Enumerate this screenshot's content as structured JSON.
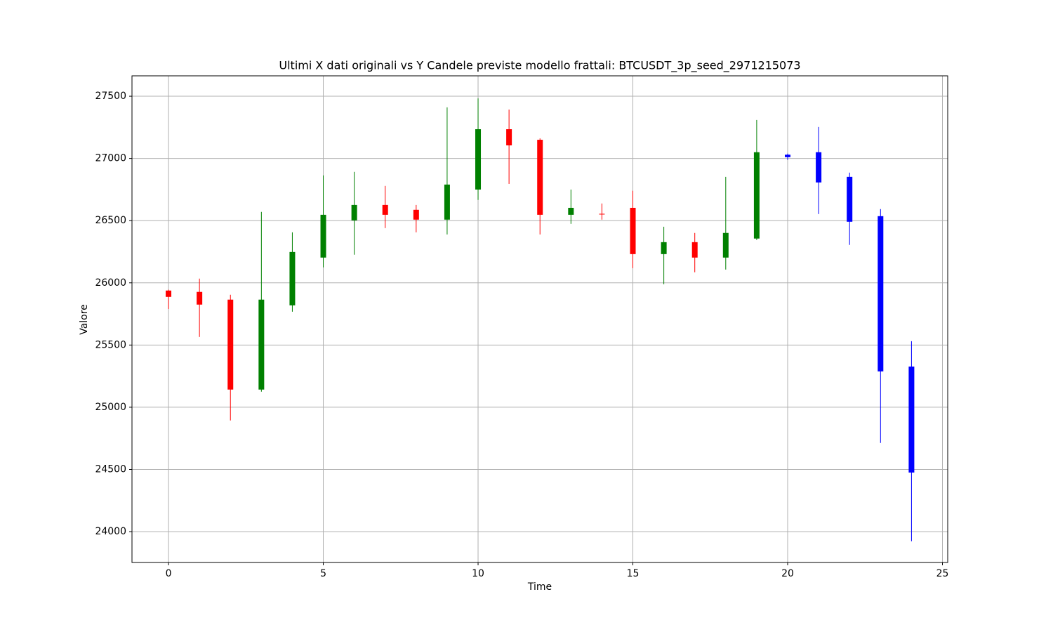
{
  "chart_data": {
    "type": "candlestick",
    "title": "Ultimi X dati originali vs Y Candele previste modello frattali: BTCUSDT_3p_seed_2971215073",
    "x_label": "Time",
    "y_label": "Valore",
    "x": [
      0,
      1,
      2,
      3,
      4,
      5,
      6,
      7,
      8,
      9,
      10,
      11,
      12,
      13,
      14,
      15,
      16,
      17,
      18,
      19,
      20,
      21,
      22,
      23,
      24
    ],
    "open": [
      25938,
      25927,
      25865,
      25142,
      25819,
      26203,
      26502,
      26626,
      26587,
      26508,
      26750,
      27235,
      27150,
      26547,
      26555,
      26603,
      26231,
      26327,
      26203,
      26356,
      27030,
      27050,
      26852,
      26536,
      25327
    ],
    "high": [
      25945,
      26034,
      25904,
      26570,
      26406,
      26864,
      26892,
      26779,
      26626,
      27411,
      27483,
      27393,
      27161,
      26750,
      26638,
      26740,
      26451,
      26401,
      26852,
      27309,
      27039,
      27253,
      26886,
      26593,
      25531
    ],
    "low": [
      25790,
      25565,
      24894,
      25125,
      25768,
      26124,
      26226,
      26440,
      26406,
      26389,
      26666,
      26795,
      26389,
      26474,
      26508,
      26118,
      25989,
      26085,
      26107,
      26344,
      26988,
      26553,
      26305,
      24713,
      23923
    ],
    "close": [
      25887,
      25825,
      25142,
      25865,
      26248,
      26547,
      26626,
      26547,
      26508,
      26790,
      27235,
      27105,
      26547,
      26603,
      26550,
      26231,
      26327,
      26203,
      26401,
      27050,
      27010,
      26807,
      26491,
      25288,
      24475
    ],
    "colors": [
      "red",
      "red",
      "red",
      "green",
      "green",
      "green",
      "green",
      "red",
      "red",
      "green",
      "green",
      "red",
      "red",
      "green",
      "red",
      "red",
      "green",
      "red",
      "green",
      "green",
      "blue",
      "blue",
      "blue",
      "blue",
      "blue"
    ],
    "xlim": [
      -1.18,
      25.17
    ],
    "xticks": [
      0,
      5,
      10,
      15,
      20,
      25
    ],
    "ylim": [
      23752,
      27664
    ],
    "yticks": [
      24000,
      24500,
      25000,
      25500,
      26000,
      26500,
      27000,
      27500
    ],
    "grid": true
  }
}
